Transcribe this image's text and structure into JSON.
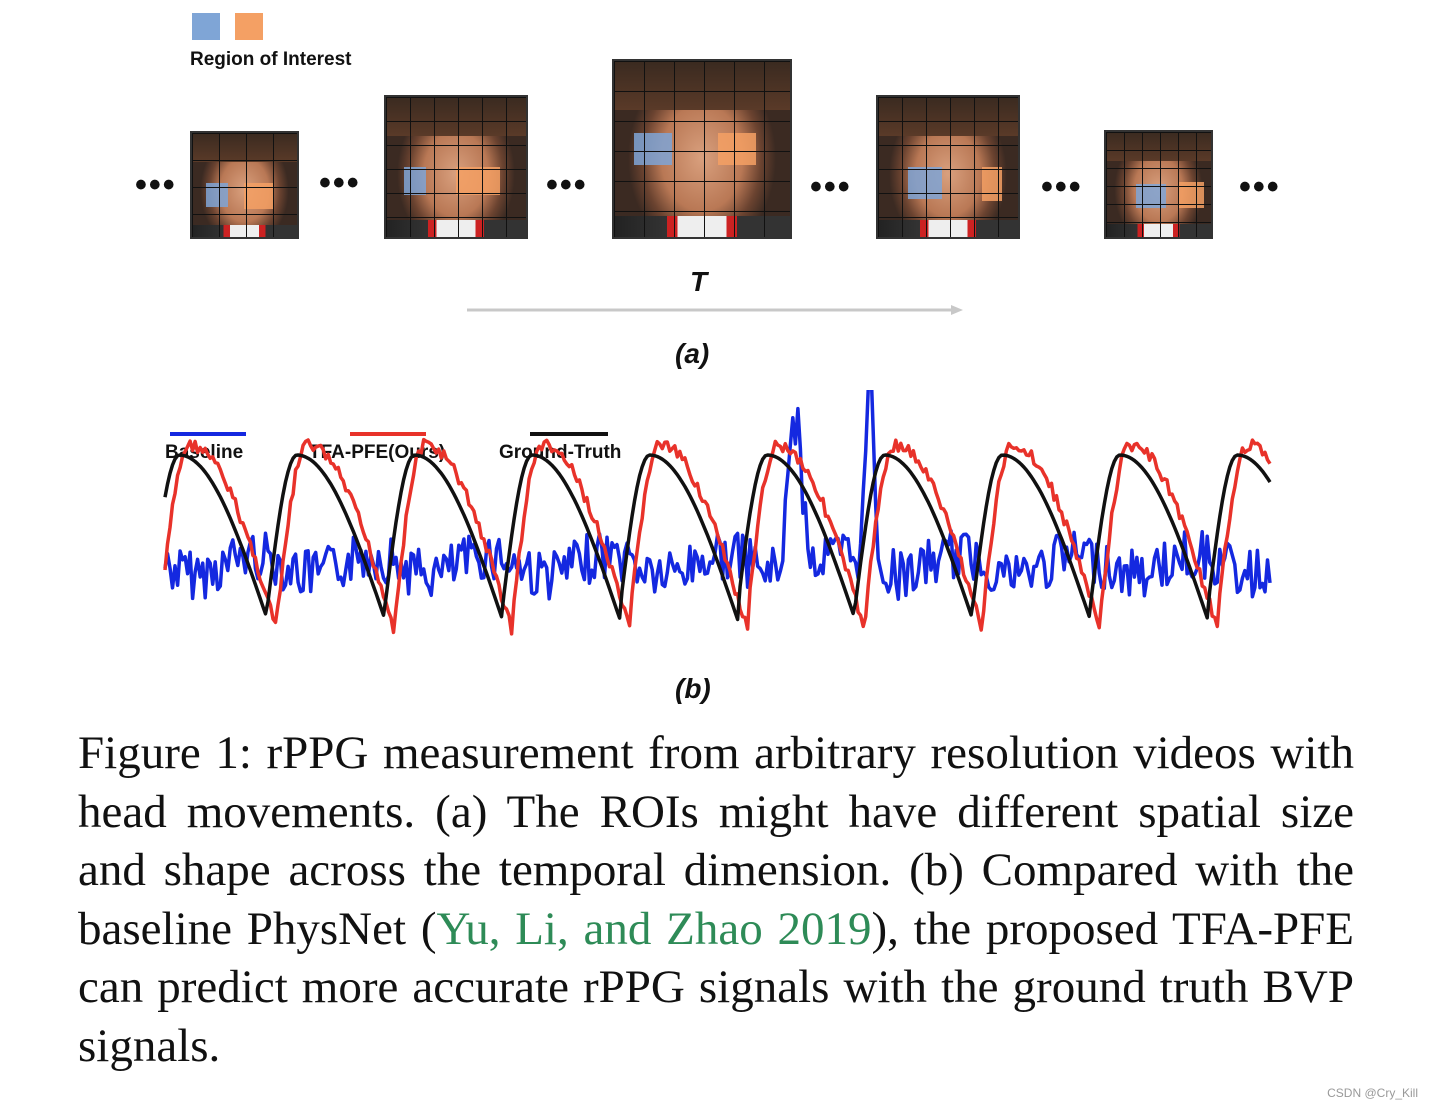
{
  "panel_a": {
    "legend_title": "Region of Interest",
    "roi_colors": [
      "#7fa5d6",
      "#f4a064"
    ],
    "ellipsis": "•••",
    "time_label": "T",
    "label": "(a)"
  },
  "panel_b": {
    "legend": [
      {
        "name": "Baseline",
        "color": "#1428e0"
      },
      {
        "name": "TFA-PFE(Ours)",
        "color": "#e8322a"
      },
      {
        "name": "Ground-Truth",
        "color": "#111111"
      }
    ],
    "label": "(b)"
  },
  "caption": {
    "text_1": "Figure 1: rPPG measurement from arbitrary resolution videos with head movements. (a) The ROIs might have different spatial size and shape across the temporal dimension. (b) Compared with the baseline PhysNet (",
    "citation": "Yu, Li, and Zhao 2019",
    "text_2": "), the proposed TFA-PFE can predict more accurate rPPG signals with the ground truth BVP signals."
  },
  "watermark": "CSDN @Cry_Kill"
}
